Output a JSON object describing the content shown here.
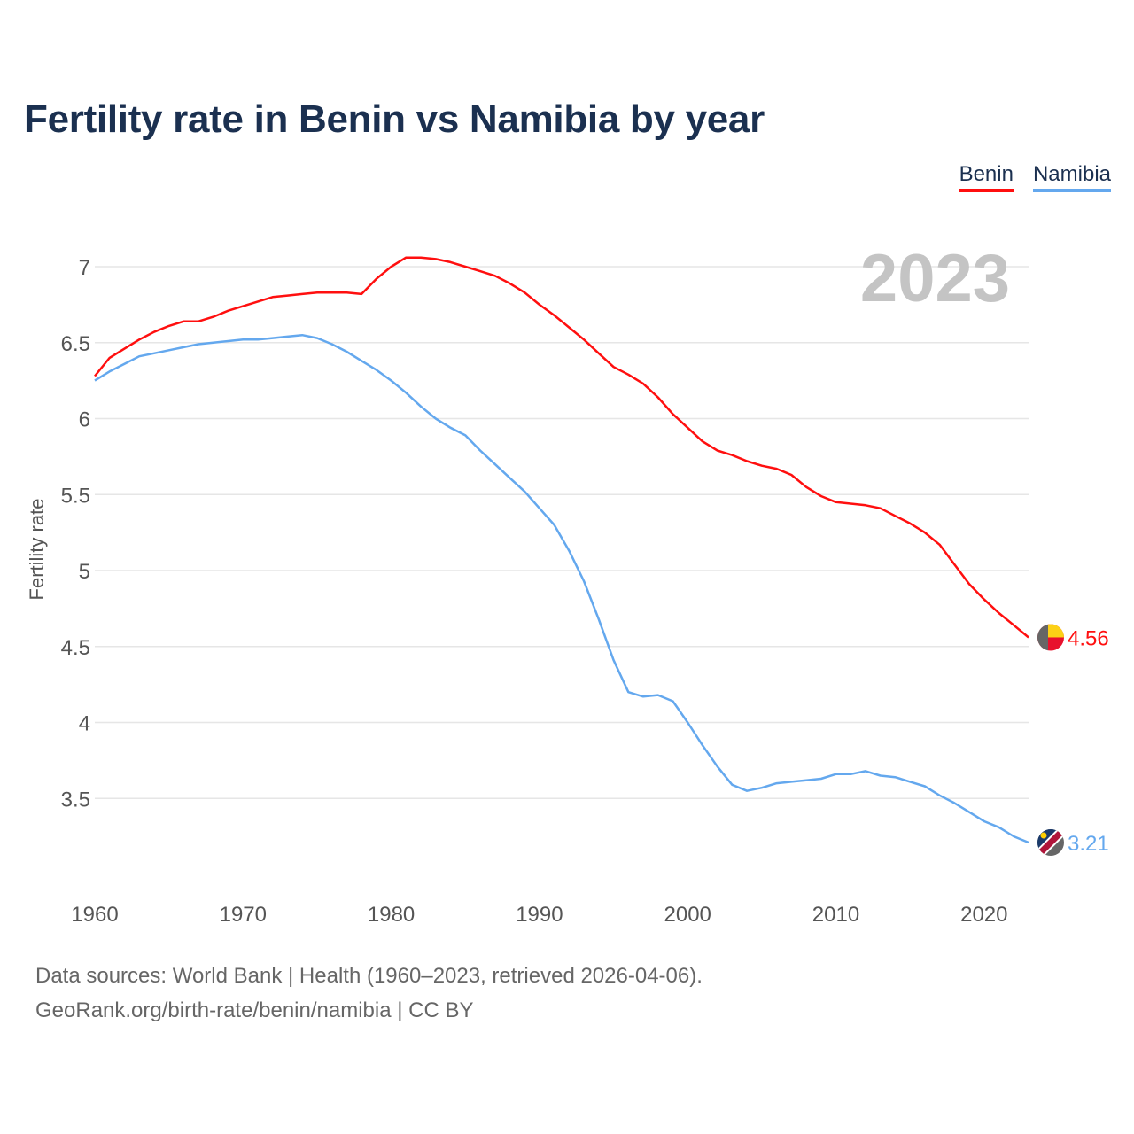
{
  "chart_data": {
    "type": "line",
    "title": "Fertility rate in Benin vs Namibia by year",
    "xlabel": "",
    "ylabel": "Fertility rate",
    "year_label": "2023",
    "xlim": [
      1960,
      2023
    ],
    "ylim": [
      3.0,
      7.2
    ],
    "x_ticks": [
      "1960",
      "1970",
      "1980",
      "1990",
      "2000",
      "2010",
      "2020"
    ],
    "y_ticks": [
      "3.5",
      "4",
      "4.5",
      "5",
      "5.5",
      "6",
      "6.5",
      "7"
    ],
    "grid": true,
    "legend_position": "top-right",
    "x": [
      1960,
      1961,
      1962,
      1963,
      1964,
      1965,
      1966,
      1967,
      1968,
      1969,
      1970,
      1971,
      1972,
      1973,
      1974,
      1975,
      1976,
      1977,
      1978,
      1979,
      1980,
      1981,
      1982,
      1983,
      1984,
      1985,
      1986,
      1987,
      1988,
      1989,
      1990,
      1991,
      1992,
      1993,
      1994,
      1995,
      1996,
      1997,
      1998,
      1999,
      2000,
      2001,
      2002,
      2003,
      2004,
      2005,
      2006,
      2007,
      2008,
      2009,
      2010,
      2011,
      2012,
      2013,
      2014,
      2015,
      2016,
      2017,
      2018,
      2019,
      2020,
      2021,
      2022,
      2023
    ],
    "series": [
      {
        "name": "Benin",
        "color": "#ff0f0f",
        "end_label": "4.56",
        "values": [
          6.28,
          6.4,
          6.46,
          6.52,
          6.57,
          6.61,
          6.64,
          6.64,
          6.67,
          6.71,
          6.74,
          6.77,
          6.8,
          6.81,
          6.82,
          6.83,
          6.83,
          6.83,
          6.82,
          6.92,
          7.0,
          7.06,
          7.06,
          7.05,
          7.03,
          7.0,
          6.97,
          6.94,
          6.89,
          6.83,
          6.75,
          6.68,
          6.6,
          6.52,
          6.43,
          6.34,
          6.29,
          6.23,
          6.14,
          6.03,
          5.94,
          5.85,
          5.79,
          5.76,
          5.72,
          5.69,
          5.67,
          5.63,
          5.55,
          5.49,
          5.45,
          5.44,
          5.43,
          5.41,
          5.36,
          5.31,
          5.25,
          5.17,
          5.04,
          4.91,
          4.81,
          4.72,
          4.64,
          4.56
        ]
      },
      {
        "name": "Namibia",
        "color": "#64a8ee",
        "end_label": "3.21",
        "values": [
          6.25,
          6.31,
          6.36,
          6.41,
          6.43,
          6.45,
          6.47,
          6.49,
          6.5,
          6.51,
          6.52,
          6.52,
          6.53,
          6.54,
          6.55,
          6.53,
          6.49,
          6.44,
          6.38,
          6.32,
          6.25,
          6.17,
          6.08,
          6.0,
          5.94,
          5.89,
          5.79,
          5.7,
          5.61,
          5.52,
          5.41,
          5.3,
          5.13,
          4.93,
          4.68,
          4.41,
          4.2,
          4.17,
          4.18,
          4.14,
          4.0,
          3.85,
          3.71,
          3.59,
          3.55,
          3.57,
          3.6,
          3.61,
          3.62,
          3.63,
          3.66,
          3.66,
          3.68,
          3.65,
          3.64,
          3.61,
          3.58,
          3.52,
          3.47,
          3.41,
          3.35,
          3.31,
          3.25,
          3.21
        ]
      }
    ]
  },
  "source_line1": "Data sources: World Bank | Health (1960–2023, retrieved 2026-04-06).",
  "source_line2": "GeoRank.org/birth-rate/benin/namibia | CC BY"
}
